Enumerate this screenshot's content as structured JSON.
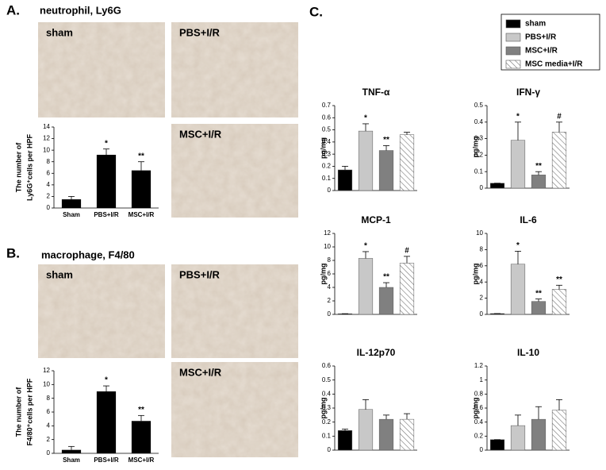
{
  "panels": [
    {
      "label": "A.",
      "title": "neutrophil, Ly6G",
      "images": [
        "sham",
        "PBS+I/R",
        "MSC+I/R"
      ]
    },
    {
      "label": "B.",
      "title": "macrophage, F4/80",
      "images": [
        "sham",
        "PBS+I/R",
        "MSC+I/R"
      ]
    },
    {
      "label": "C."
    }
  ],
  "legend": {
    "series": [
      {
        "name": "sham",
        "color": "#000000"
      },
      {
        "name": "PBS+I/R",
        "color": "#c8c8c8"
      },
      {
        "name": "MSC+I/R",
        "color": "#808080"
      },
      {
        "name": "MSC media+I/R",
        "color": "#ffffff",
        "pattern": "hatch"
      }
    ]
  },
  "chart_data": [
    {
      "type": "bar",
      "ylabel": [
        "The number of",
        "Ly6G⁺cells per HPF"
      ],
      "categories": [
        "Sham",
        "PBS+I/R",
        "MSC+I/R"
      ],
      "values": [
        1.5,
        9.2,
        6.5
      ],
      "errors": [
        0.5,
        1.0,
        1.5
      ],
      "annotations": [
        null,
        "*",
        "**"
      ],
      "color": "#000000",
      "ylim": [
        0,
        14
      ],
      "yticks": [
        0,
        2,
        4,
        6,
        8,
        10,
        12,
        14
      ]
    },
    {
      "type": "bar",
      "ylabel": [
        "The number of",
        "F4/80⁺cells per HPF"
      ],
      "categories": [
        "Sham",
        "PBS+I/R",
        "MSC+I/R"
      ],
      "values": [
        0.5,
        9.0,
        4.7
      ],
      "errors": [
        0.5,
        0.8,
        0.8
      ],
      "annotations": [
        null,
        "*",
        "**"
      ],
      "color": "#000000",
      "ylim": [
        0,
        12
      ],
      "yticks": [
        0,
        2,
        4,
        6,
        8,
        10,
        12
      ]
    },
    {
      "type": "bar",
      "title": "TNF-α",
      "ylabel": [
        "pg/mg"
      ],
      "values": [
        0.17,
        0.49,
        0.33,
        0.46
      ],
      "errors": [
        0.03,
        0.06,
        0.04,
        0.02
      ],
      "annotations": [
        null,
        "*",
        "**",
        null
      ],
      "ylim": [
        0,
        0.7
      ],
      "yticks": [
        0,
        0.1,
        0.2,
        0.3,
        0.4,
        0.5,
        0.6,
        0.7
      ]
    },
    {
      "type": "bar",
      "title": "IFN-γ",
      "ylabel": [
        "pg/mg"
      ],
      "values": [
        0.03,
        0.29,
        0.08,
        0.34
      ],
      "errors": [
        0,
        0.11,
        0.02,
        0.06
      ],
      "annotations": [
        null,
        "*",
        "**",
        "#"
      ],
      "ylim": [
        0,
        0.5
      ],
      "yticks": [
        0,
        0.1,
        0.2,
        0.3,
        0.4,
        0.5
      ]
    },
    {
      "type": "bar",
      "title": "MCP-1",
      "ylabel": [
        "pg/mg"
      ],
      "values": [
        0.1,
        8.3,
        4.0,
        7.6
      ],
      "errors": [
        0,
        1.0,
        0.7,
        1.0
      ],
      "annotations": [
        null,
        "*",
        "**",
        "#"
      ],
      "ylim": [
        0,
        12
      ],
      "yticks": [
        0,
        2,
        4,
        6,
        8,
        10,
        12
      ]
    },
    {
      "type": "bar",
      "title": "IL-6",
      "ylabel": [
        "pg/mg"
      ],
      "values": [
        0.1,
        6.2,
        1.6,
        3.1
      ],
      "errors": [
        0,
        1.6,
        0.3,
        0.5
      ],
      "annotations": [
        null,
        "*",
        "**",
        "**"
      ],
      "ylim": [
        0,
        10
      ],
      "yticks": [
        0,
        2,
        4,
        6,
        8,
        10
      ]
    },
    {
      "type": "bar",
      "title": "IL-12p70",
      "ylabel": [
        "pg/mg"
      ],
      "values": [
        0.14,
        0.29,
        0.22,
        0.22
      ],
      "errors": [
        0.01,
        0.07,
        0.03,
        0.04
      ],
      "annotations": [
        null,
        null,
        null,
        null
      ],
      "ylim": [
        0,
        0.6
      ],
      "yticks": [
        0,
        0.1,
        0.2,
        0.3,
        0.4,
        0.5,
        0.6
      ]
    },
    {
      "type": "bar",
      "title": "IL-10",
      "ylabel": [
        "pg/mg"
      ],
      "values": [
        0.15,
        0.35,
        0.44,
        0.57
      ],
      "errors": [
        0,
        0.15,
        0.18,
        0.15
      ],
      "annotations": [
        null,
        null,
        null,
        null
      ],
      "ylim": [
        0,
        1.2
      ],
      "yticks": [
        0,
        0.2,
        0.4,
        0.6,
        0.8,
        1,
        1.2
      ]
    }
  ]
}
